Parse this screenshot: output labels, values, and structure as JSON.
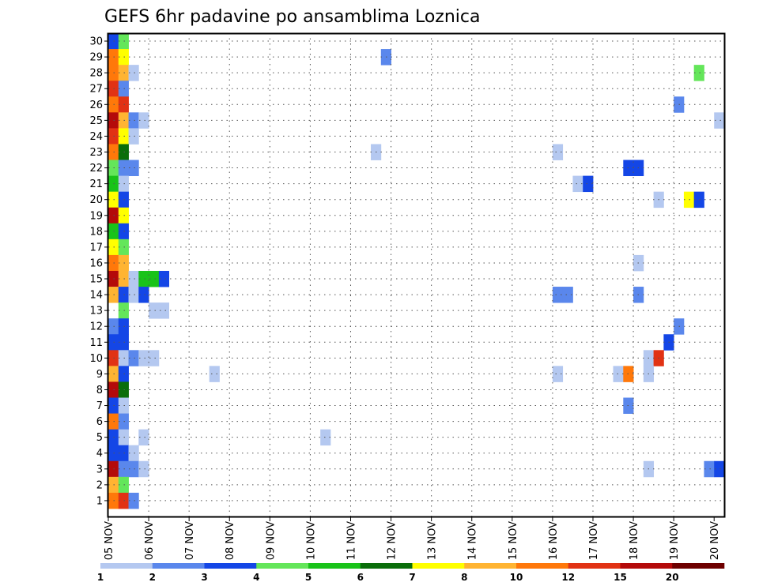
{
  "chart_data": {
    "type": "heatmap",
    "title": "GEFS 6hr padavine po ansamblima Loznica",
    "xlabel": "",
    "ylabel": "",
    "x_tick_labels": [
      "05 NOV",
      "06 NOV",
      "07 NOV",
      "08 NOV",
      "09 NOV",
      "10 NOV",
      "11 NOV",
      "12 NOV",
      "13 NOV",
      "14 NOV",
      "15 NOV",
      "16 NOV",
      "17 NOV",
      "18 NOV",
      "19 NOV",
      "20 NOV"
    ],
    "xlim": [
      0,
      60
    ],
    "x_unit": "6-hour steps from 05 NOV 00Z",
    "y_tick_labels": [
      "1",
      "2",
      "3",
      "4",
      "5",
      "6",
      "7",
      "8",
      "9",
      "10",
      "11",
      "12",
      "13",
      "14",
      "15",
      "16",
      "17",
      "18",
      "19",
      "20",
      "21",
      "22",
      "23",
      "24",
      "25",
      "26",
      "27",
      "28",
      "29",
      "30"
    ],
    "ylim": [
      0,
      30
    ],
    "grid": true,
    "colorbar": {
      "position": "bottom",
      "labels": [
        "1",
        "2",
        "3",
        "4",
        "5",
        "6",
        "7",
        "8",
        "10",
        "12",
        "15",
        "20"
      ],
      "bounds": [
        1,
        2,
        3,
        4,
        5,
        6,
        7,
        8,
        10,
        12,
        15,
        20
      ],
      "colors": [
        "#b4c8f0",
        "#5a87ec",
        "#1446e6",
        "#64e65a",
        "#19c319",
        "#0a6e0a",
        "#ffff00",
        "#ffb432",
        "#ff780a",
        "#e13214",
        "#b40a0a",
        "#6e0000"
      ]
    },
    "cells": [
      [
        0,
        30,
        "#1446e6"
      ],
      [
        1,
        30,
        "#64e65a"
      ],
      [
        0,
        29,
        "#ff780a"
      ],
      [
        1,
        29,
        "#ffff00"
      ],
      [
        27,
        29,
        "#5a87ec"
      ],
      [
        0,
        28,
        "#ff780a"
      ],
      [
        1,
        28,
        "#ffb432"
      ],
      [
        2,
        28,
        "#b4c8f0"
      ],
      [
        58,
        28,
        "#64e65a"
      ],
      [
        0,
        27,
        "#e13214"
      ],
      [
        1,
        27,
        "#5a87ec"
      ],
      [
        0,
        26,
        "#ff780a"
      ],
      [
        1,
        26,
        "#e13214"
      ],
      [
        56,
        26,
        "#5a87ec"
      ],
      [
        0,
        25,
        "#b40a0a"
      ],
      [
        1,
        25,
        "#ffb432"
      ],
      [
        2,
        25,
        "#5a87ec"
      ],
      [
        3,
        25,
        "#b4c8f0"
      ],
      [
        60,
        25,
        "#b4c8f0"
      ],
      [
        0,
        24,
        "#e13214"
      ],
      [
        1,
        24,
        "#ffff00"
      ],
      [
        2,
        24,
        "#b4c8f0"
      ],
      [
        0,
        23,
        "#ff780a"
      ],
      [
        1,
        23,
        "#0a6e0a"
      ],
      [
        26,
        23,
        "#b4c8f0"
      ],
      [
        44,
        23,
        "#b4c8f0"
      ],
      [
        0,
        22,
        "#64e65a"
      ],
      [
        1,
        22,
        "#5a87ec"
      ],
      [
        2,
        22,
        "#5a87ec"
      ],
      [
        51,
        22,
        "#1446e6"
      ],
      [
        52,
        22,
        "#1446e6"
      ],
      [
        0,
        21,
        "#19c319"
      ],
      [
        1,
        21,
        "#b4c8f0"
      ],
      [
        46,
        21,
        "#b4c8f0"
      ],
      [
        47,
        21,
        "#1446e6"
      ],
      [
        0,
        20,
        "#ffff00"
      ],
      [
        1,
        20,
        "#1446e6"
      ],
      [
        54,
        20,
        "#b4c8f0"
      ],
      [
        57,
        20,
        "#ffff00"
      ],
      [
        58,
        20,
        "#1446e6"
      ],
      [
        0,
        19,
        "#b40a0a"
      ],
      [
        1,
        19,
        "#ffff00"
      ],
      [
        0,
        18,
        "#19c319"
      ],
      [
        1,
        18,
        "#1446e6"
      ],
      [
        0,
        17,
        "#ffff00"
      ],
      [
        1,
        17,
        "#64e65a"
      ],
      [
        0,
        16,
        "#ff780a"
      ],
      [
        1,
        16,
        "#ffb432"
      ],
      [
        52,
        16,
        "#b4c8f0"
      ],
      [
        0,
        15,
        "#b40a0a"
      ],
      [
        1,
        15,
        "#ffb432"
      ],
      [
        2,
        15,
        "#b4c8f0"
      ],
      [
        3,
        15,
        "#19c319"
      ],
      [
        4,
        15,
        "#19c319"
      ],
      [
        5,
        15,
        "#1446e6"
      ],
      [
        0,
        14,
        "#ffb432"
      ],
      [
        1,
        14,
        "#1446e6"
      ],
      [
        2,
        14,
        "#b4c8f0"
      ],
      [
        3,
        14,
        "#1446e6"
      ],
      [
        44,
        14,
        "#5a87ec"
      ],
      [
        45,
        14,
        "#5a87ec"
      ],
      [
        52,
        14,
        "#5a87ec"
      ],
      [
        1,
        13,
        "#64e65a"
      ],
      [
        4,
        13,
        "#b4c8f0"
      ],
      [
        5,
        13,
        "#b4c8f0"
      ],
      [
        0,
        12,
        "#5a87ec"
      ],
      [
        1,
        12,
        "#1446e6"
      ],
      [
        56,
        12,
        "#5a87ec"
      ],
      [
        0,
        11,
        "#1446e6"
      ],
      [
        1,
        11,
        "#1446e6"
      ],
      [
        55,
        11,
        "#1446e6"
      ],
      [
        0,
        10,
        "#e13214"
      ],
      [
        1,
        10,
        "#b4c8f0"
      ],
      [
        2,
        10,
        "#5a87ec"
      ],
      [
        3,
        10,
        "#b4c8f0"
      ],
      [
        4,
        10,
        "#b4c8f0"
      ],
      [
        53,
        10,
        "#b4c8f0"
      ],
      [
        54,
        10,
        "#e13214"
      ],
      [
        0,
        9,
        "#ffb432"
      ],
      [
        1,
        9,
        "#1446e6"
      ],
      [
        10,
        9,
        "#b4c8f0"
      ],
      [
        44,
        9,
        "#b4c8f0"
      ],
      [
        50,
        9,
        "#b4c8f0"
      ],
      [
        51,
        9,
        "#ff780a"
      ],
      [
        53,
        9,
        "#b4c8f0"
      ],
      [
        0,
        8,
        "#b40a0a"
      ],
      [
        1,
        8,
        "#0a6e0a"
      ],
      [
        0,
        7,
        "#1446e6"
      ],
      [
        1,
        7,
        "#b4c8f0"
      ],
      [
        51,
        7,
        "#5a87ec"
      ],
      [
        0,
        6,
        "#ff780a"
      ],
      [
        1,
        6,
        "#5a87ec"
      ],
      [
        0,
        5,
        "#1446e6"
      ],
      [
        1,
        5,
        "#b4c8f0"
      ],
      [
        3,
        5,
        "#b4c8f0"
      ],
      [
        21,
        5,
        "#b4c8f0"
      ],
      [
        0,
        4,
        "#1446e6"
      ],
      [
        1,
        4,
        "#1446e6"
      ],
      [
        2,
        4,
        "#b4c8f0"
      ],
      [
        0,
        3,
        "#b40a0a"
      ],
      [
        1,
        3,
        "#5a87ec"
      ],
      [
        2,
        3,
        "#5a87ec"
      ],
      [
        3,
        3,
        "#b4c8f0"
      ],
      [
        53,
        3,
        "#b4c8f0"
      ],
      [
        59,
        3,
        "#5a87ec"
      ],
      [
        60,
        3,
        "#1446e6"
      ],
      [
        0,
        2,
        "#ffb432"
      ],
      [
        1,
        2,
        "#64e65a"
      ],
      [
        0,
        1,
        "#ff780a"
      ],
      [
        1,
        1,
        "#e13214"
      ],
      [
        2,
        1,
        "#5a87ec"
      ]
    ]
  }
}
